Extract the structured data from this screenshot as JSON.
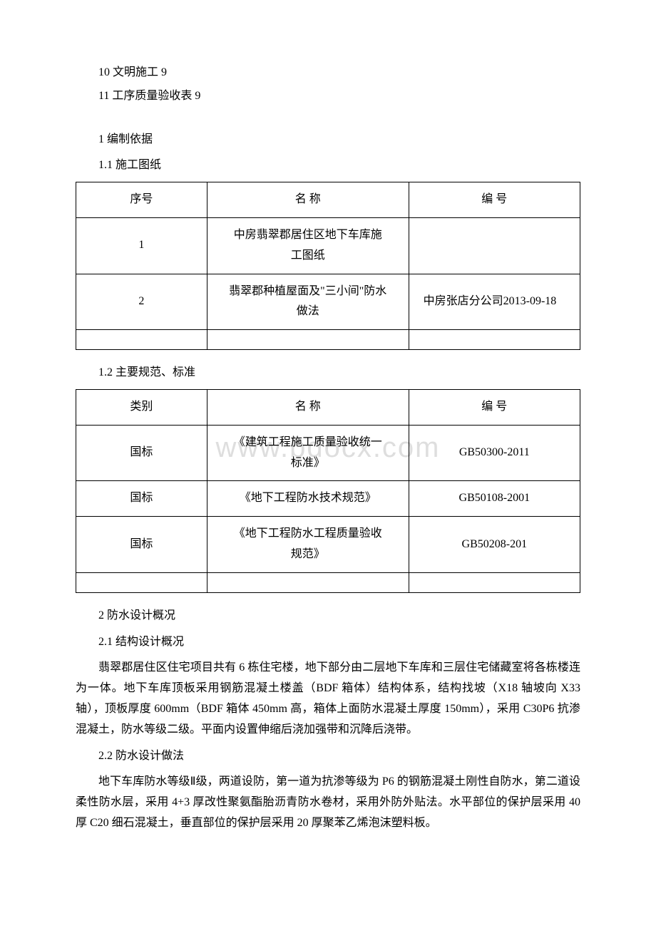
{
  "toc": {
    "line1": "10 文明施工 9",
    "line2": "11 工序质量验收表 9"
  },
  "section1": {
    "heading": "1 编制依据",
    "sub1": "1.1 施工图纸",
    "sub2": "1.2 主要规范、标准"
  },
  "table1": {
    "header": {
      "c1": "序号",
      "c2": "名 称",
      "c3": "编 号"
    },
    "rows": [
      {
        "c1": "1",
        "c2": "中房翡翠郡居住区地下车库施工图纸",
        "c3": ""
      },
      {
        "c1": "2",
        "c2": "翡翠郡种植屋面及\"三小间\"防水做法",
        "c3": "中房张店分公司2013-09-18"
      }
    ]
  },
  "table2": {
    "header": {
      "c1": "类别",
      "c2": "名 称",
      "c3": "编 号"
    },
    "rows": [
      {
        "c1": "国标",
        "c2": "《建筑工程施工质量验收统一标准》",
        "c3": "GB50300-2011"
      },
      {
        "c1": "国标",
        "c2": "《地下工程防水技术规范》",
        "c3": "GB50108-2001"
      },
      {
        "c1": "国标",
        "c2": "《地下工程防水工程质量验收规范》",
        "c3": "GB50208-201"
      }
    ]
  },
  "section2": {
    "heading": "2 防水设计概况",
    "sub1": "2.1 结构设计概况",
    "para1": "翡翠郡居住区住宅项目共有 6 栋住宅楼，地下部分由二层地下车库和三层住宅储藏室将各栋楼连为一体。地下车库顶板采用钢筋混凝土楼盖（BDF 箱体）结构体系，结构找坡（X18 轴坡向 X33 轴），顶板厚度 600mm（BDF 箱体 450mm 高，箱体上面防水混凝土厚度 150mm），采用 C30P6 抗渗混凝土，防水等级二级。平面内设置伸缩后浇加强带和沉降后浇带。",
    "sub2": "2.2 防水设计做法",
    "para2": "地下车库防水等级Ⅱ级，两道设防，第一道为抗渗等级为 P6 的钢筋混凝土刚性自防水，第二道设柔性防水层，采用 4+3 厚改性聚氨酯胎沥青防水卷材，采用外防外贴法。水平部位的保护层采用 40 厚 C20 细石混凝土，垂直部位的保护层采用 20 厚聚苯乙烯泡沫塑料板。"
  },
  "watermark": "www.bdocx.com"
}
